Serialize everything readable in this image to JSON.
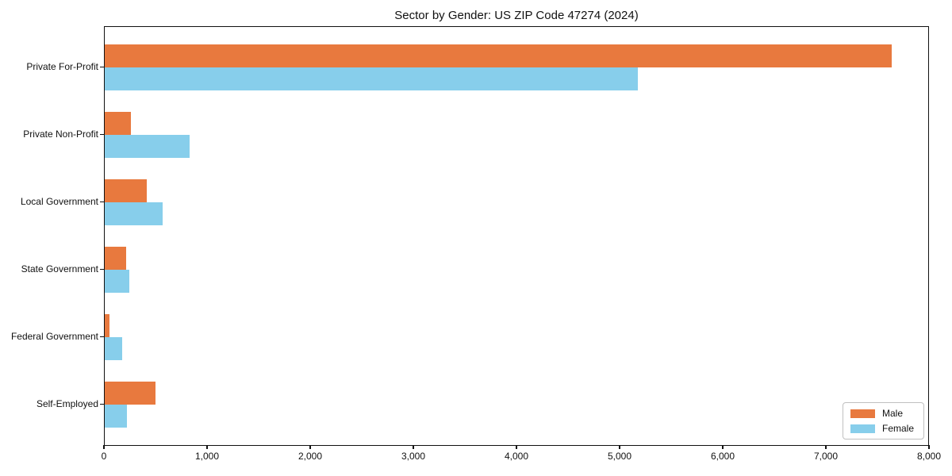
{
  "chart_data": {
    "type": "bar",
    "orientation": "horizontal",
    "title": "Sector by Gender: US ZIP Code 47274 (2024)",
    "categories": [
      "Private For-Profit",
      "Private Non-Profit",
      "Local Government",
      "State Government",
      "Federal Government",
      "Self-Employed"
    ],
    "series": [
      {
        "name": "Male",
        "color": "#e8793e",
        "values": [
          7630,
          250,
          410,
          210,
          45,
          490
        ]
      },
      {
        "name": "Female",
        "color": "#87ceeb",
        "values": [
          5170,
          820,
          560,
          240,
          170,
          215
        ]
      }
    ],
    "xlabel": "",
    "ylabel": "",
    "xlim": [
      0,
      8000
    ],
    "xticks": [
      0,
      1000,
      2000,
      3000,
      4000,
      5000,
      6000,
      7000,
      8000
    ],
    "xtick_labels": [
      "0",
      "1,000",
      "2,000",
      "3,000",
      "4,000",
      "5,000",
      "6,000",
      "7,000",
      "8,000"
    ],
    "grid": false,
    "legend_position": "lower right",
    "axis_color": "#111111",
    "background_color": "#ffffff"
  }
}
